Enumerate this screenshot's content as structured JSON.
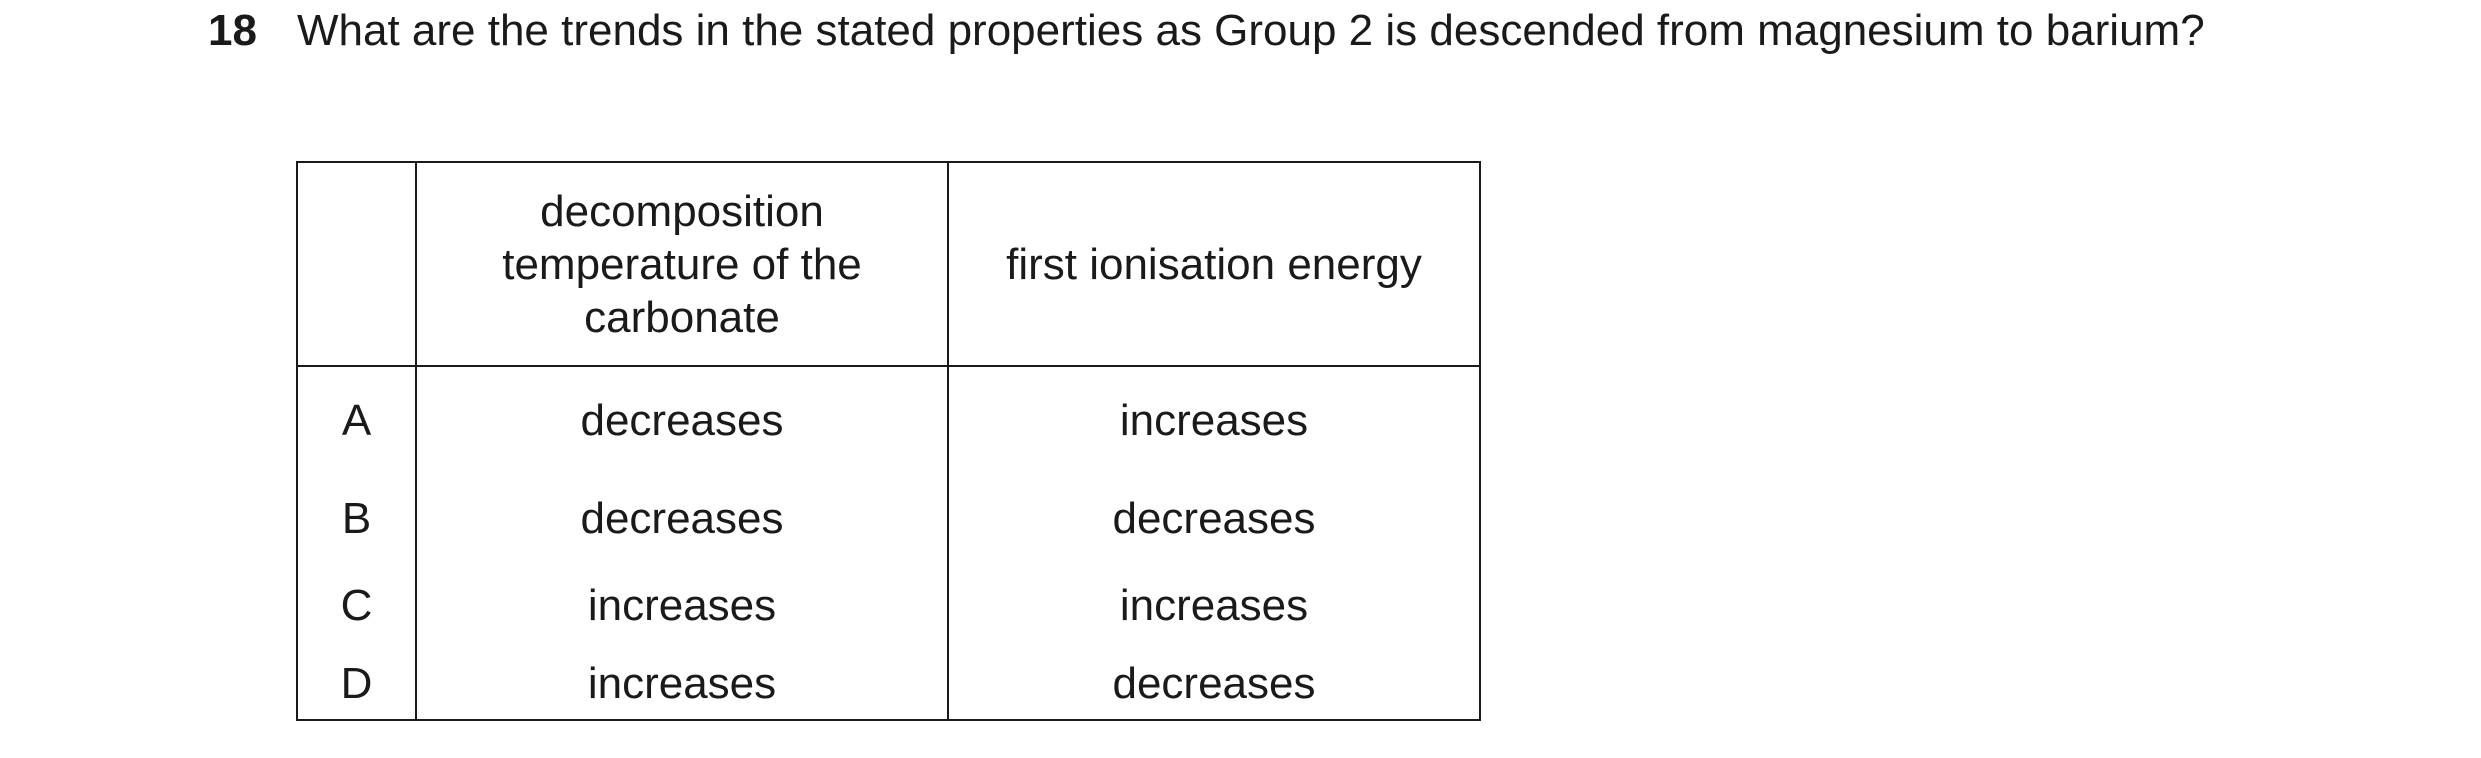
{
  "question": {
    "number": "18",
    "text": "What are the trends in the stated properties as Group 2 is descended from magnesium to barium?"
  },
  "table": {
    "headers": {
      "letter": "",
      "col1_line1": "decomposition",
      "col1_line2": "temperature of the",
      "col1_line3": "carbonate",
      "col2": "first ionisation energy"
    },
    "rows": [
      {
        "letter": "A",
        "col1": "decreases",
        "col2": "increases"
      },
      {
        "letter": "B",
        "col1": "decreases",
        "col2": "decreases"
      },
      {
        "letter": "C",
        "col1": "increases",
        "col2": "increases"
      },
      {
        "letter": "D",
        "col1": "increases",
        "col2": "decreases"
      }
    ]
  }
}
